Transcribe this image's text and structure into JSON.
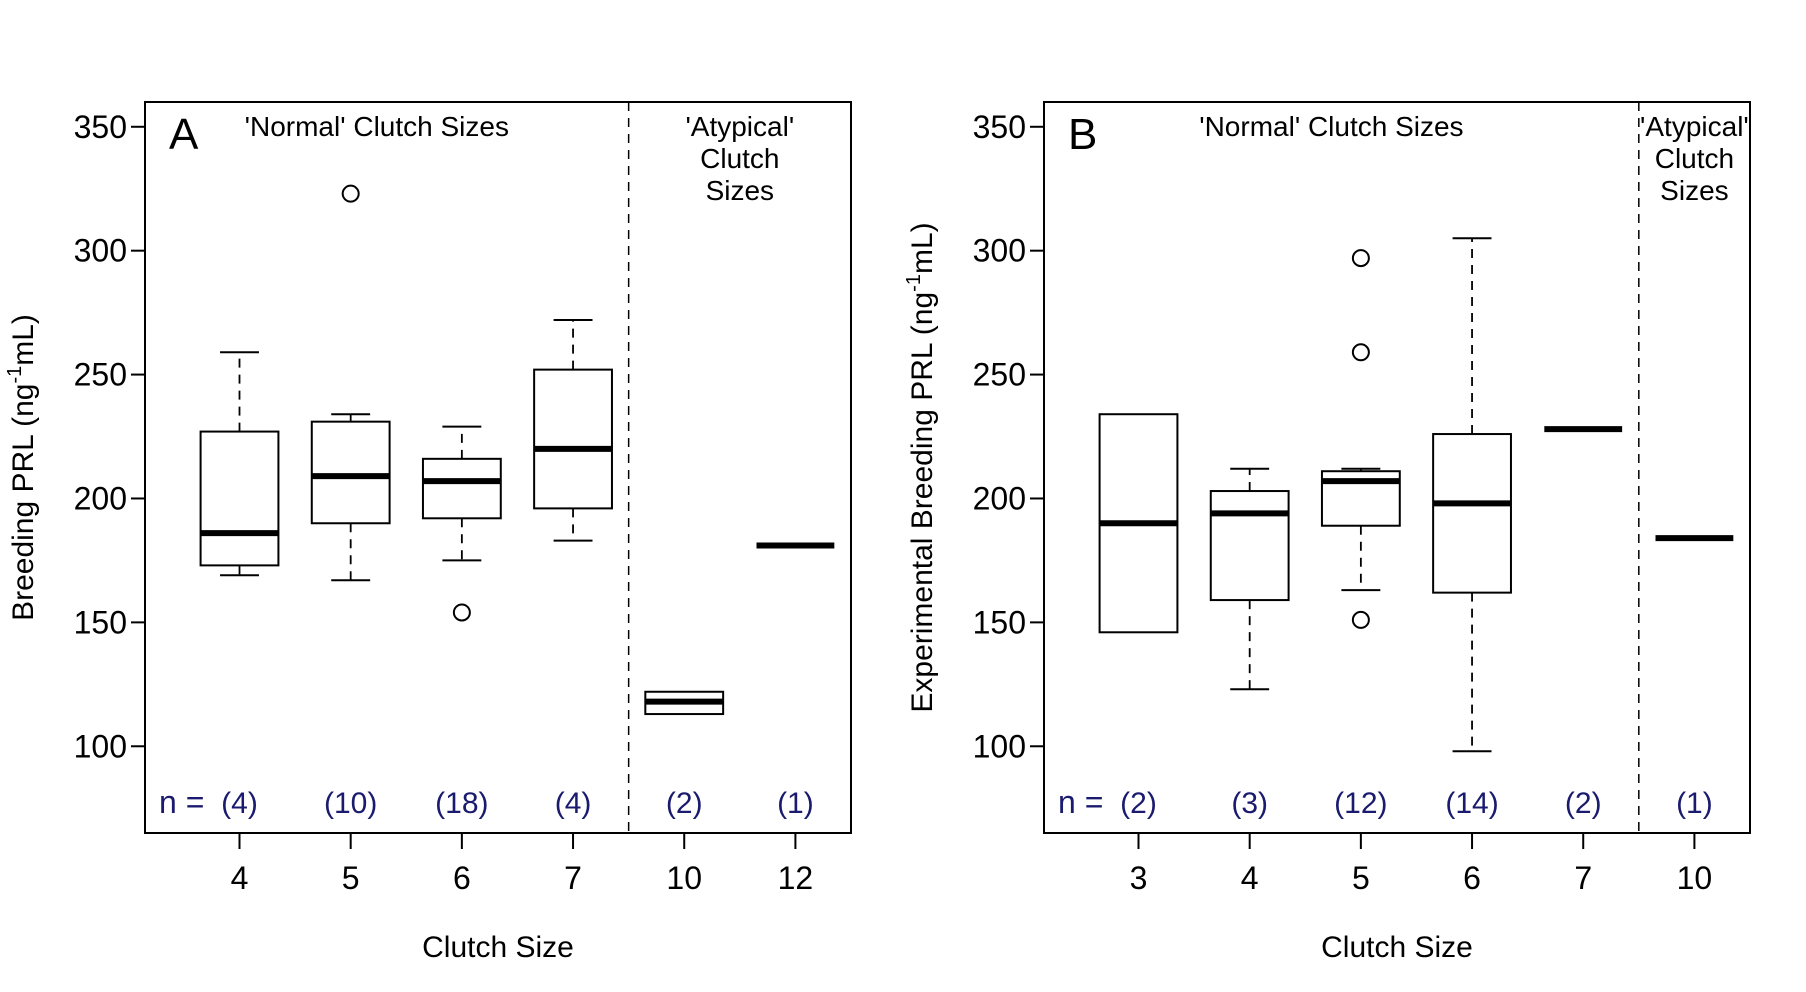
{
  "chart_data": [
    {
      "type": "box",
      "panel_label": "A",
      "ylabel_main": "Breeding PRL (ng",
      "ylabel_sup": "-1",
      "ylabel_end": "mL)",
      "xlabel": "Clutch Size",
      "ylim": [
        65,
        360
      ],
      "yticks": [
        100,
        150,
        200,
        250,
        300,
        350
      ],
      "n_prefix": "n =",
      "groups": [
        {
          "label": "Normal",
          "title_lines": [
            "'Normal' Clutch Sizes"
          ]
        },
        {
          "label": "Atypical",
          "title_lines": [
            "'Atypical'",
            "Clutch",
            "Sizes"
          ]
        }
      ],
      "boxes": [
        {
          "category": "4",
          "group": 0,
          "n": "(4)",
          "whisker_low": 169,
          "q1": 173,
          "median": 186,
          "q3": 227,
          "whisker_high": 259,
          "outliers": []
        },
        {
          "category": "5",
          "group": 0,
          "n": "(10)",
          "whisker_low": 167,
          "q1": 190,
          "median": 209,
          "q3": 231,
          "whisker_high": 234,
          "outliers": [
            323
          ]
        },
        {
          "category": "6",
          "group": 0,
          "n": "(18)",
          "whisker_low": 175,
          "q1": 192,
          "median": 207,
          "q3": 216,
          "whisker_high": 229,
          "outliers": [
            154
          ]
        },
        {
          "category": "7",
          "group": 0,
          "n": "(4)",
          "whisker_low": 183,
          "q1": 196,
          "median": 220,
          "q3": 252,
          "whisker_high": 272,
          "outliers": []
        },
        {
          "category": "10",
          "group": 1,
          "n": "(2)",
          "whisker_low": 113,
          "q1": 113,
          "median": 118,
          "q3": 122,
          "whisker_high": 122,
          "outliers": []
        },
        {
          "category": "12",
          "group": 1,
          "n": "(1)",
          "whisker_low": 181,
          "q1": 181,
          "median": 181,
          "q3": 181,
          "whisker_high": 181,
          "outliers": []
        }
      ]
    },
    {
      "type": "box",
      "panel_label": "B",
      "ylabel_main": "Experimental Breeding PRL (ng",
      "ylabel_sup": "-1",
      "ylabel_end": "mL)",
      "xlabel": "Clutch Size",
      "ylim": [
        65,
        360
      ],
      "yticks": [
        100,
        150,
        200,
        250,
        300,
        350
      ],
      "n_prefix": "n =",
      "groups": [
        {
          "label": "Normal",
          "title_lines": [
            "'Normal' Clutch Sizes"
          ]
        },
        {
          "label": "Atypical",
          "title_lines": [
            "'Atypical'",
            "Clutch",
            "Sizes"
          ]
        }
      ],
      "boxes": [
        {
          "category": "3",
          "group": 0,
          "n": "(2)",
          "whisker_low": 146,
          "q1": 146,
          "median": 190,
          "q3": 234,
          "whisker_high": 234,
          "outliers": []
        },
        {
          "category": "4",
          "group": 0,
          "n": "(3)",
          "whisker_low": 123,
          "q1": 159,
          "median": 194,
          "q3": 203,
          "whisker_high": 212,
          "outliers": []
        },
        {
          "category": "5",
          "group": 0,
          "n": "(12)",
          "whisker_low": 163,
          "q1": 189,
          "median": 207,
          "q3": 211,
          "whisker_high": 212,
          "outliers": [
            297,
            259,
            151
          ]
        },
        {
          "category": "6",
          "group": 0,
          "n": "(14)",
          "whisker_low": 98,
          "q1": 162,
          "median": 198,
          "q3": 226,
          "whisker_high": 305,
          "outliers": []
        },
        {
          "category": "7",
          "group": 0,
          "n": "(2)",
          "whisker_low": 227,
          "q1": 227,
          "median": 228,
          "q3": 229,
          "whisker_high": 229,
          "outliers": []
        },
        {
          "category": "10",
          "group": 1,
          "n": "(1)",
          "whisker_low": 184,
          "q1": 184,
          "median": 184,
          "q3": 184,
          "whisker_high": 184,
          "outliers": []
        }
      ]
    }
  ]
}
